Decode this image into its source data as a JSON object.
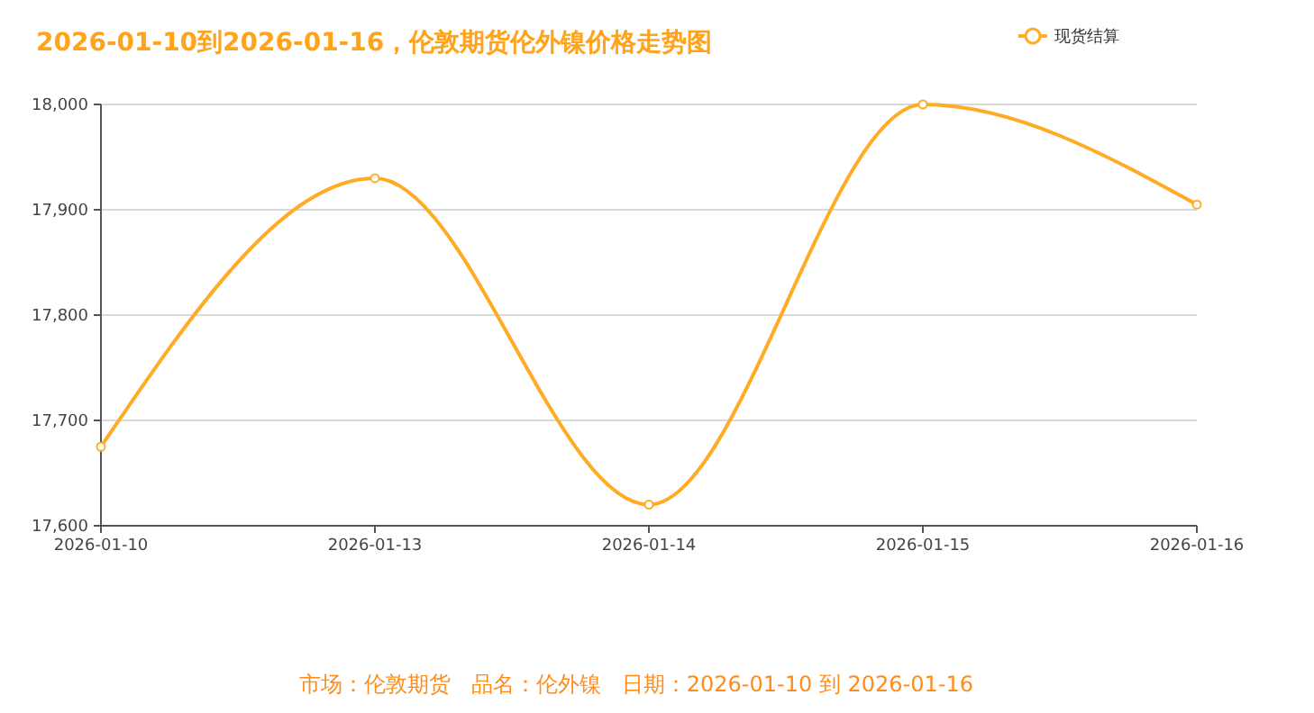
{
  "chart_data": {
    "type": "line",
    "title": "2026-01-10到2026-01-16，伦敦期货伦外镍价格走势图",
    "categories": [
      "2026-01-10",
      "2026-01-13",
      "2026-01-14",
      "2026-01-15",
      "2026-01-16"
    ],
    "series": [
      {
        "name": "现货结算",
        "color": "#ffab24",
        "values": [
          17675,
          17930,
          17620,
          18000,
          17905
        ]
      }
    ],
    "ylim": [
      17600,
      18000
    ],
    "yticks": [
      {
        "value": 17600,
        "label": "17,600"
      },
      {
        "value": 17700,
        "label": "17,700"
      },
      {
        "value": 17800,
        "label": "17,800"
      },
      {
        "value": 17900,
        "label": "17,900"
      },
      {
        "value": 18000,
        "label": "18,000"
      }
    ],
    "grid": "y",
    "legend": "top right",
    "marker": "circle",
    "annotations": [
      "市场：伦敦期货   品名：伦外镍   日期：2026-01-10 到 2026-01-16"
    ]
  }
}
